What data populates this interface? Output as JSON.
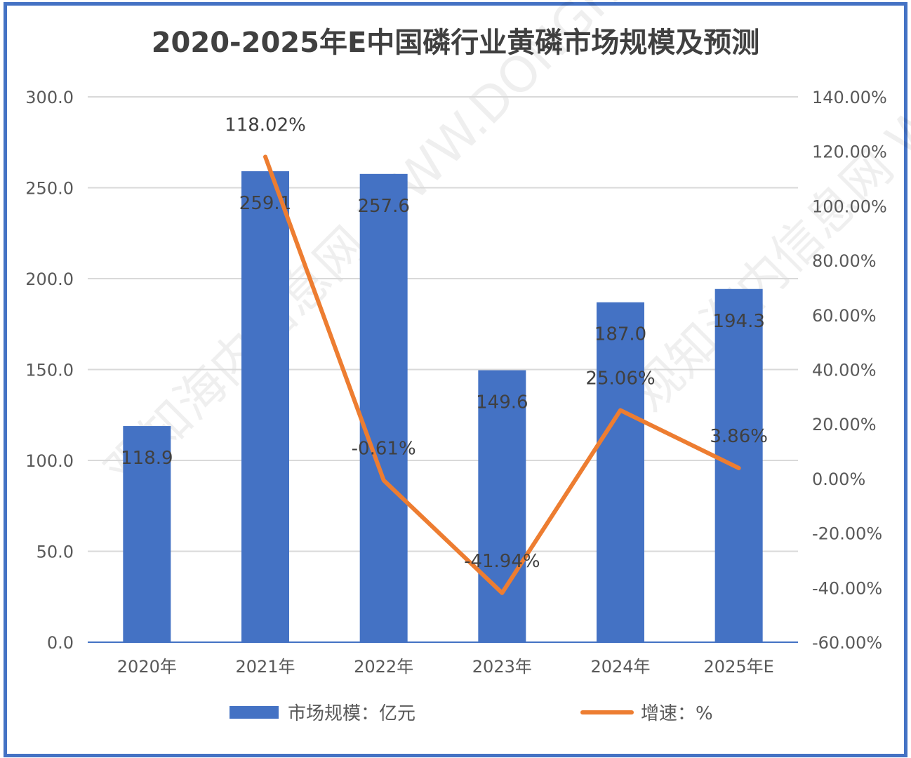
{
  "chart_data": {
    "type": "bar+line",
    "title": "2020-2025年E中国磷行业黄磷市场规模及预测",
    "categories": [
      "2020年",
      "2021年",
      "2022年",
      "2023年",
      "2024年",
      "2025年E"
    ],
    "series": [
      {
        "name": "市场规模：亿元",
        "type": "bar",
        "axis": "left",
        "values": [
          118.9,
          259.1,
          257.6,
          149.6,
          187.0,
          194.3
        ],
        "labels": [
          "118.9",
          "259.1",
          "257.6",
          "149.6",
          "187.0",
          "194.3"
        ],
        "color": "#4472C4"
      },
      {
        "name": "增速：%",
        "type": "line",
        "axis": "right",
        "values": [
          null,
          118.02,
          -0.61,
          -41.94,
          25.06,
          3.86
        ],
        "labels": [
          "",
          "118.02%",
          "-0.61%",
          "-41.94%",
          "25.06%",
          "3.86%"
        ],
        "color": "#ED7D31"
      }
    ],
    "left_axis": {
      "ylim": [
        0,
        300
      ],
      "ticks": [
        "0.0",
        "50.0",
        "100.0",
        "150.0",
        "200.0",
        "250.0",
        "300.0"
      ]
    },
    "right_axis": {
      "ylim": [
        -60,
        140
      ],
      "ticks": [
        "-60.00%",
        "-40.00%",
        "-20.00%",
        "0.00%",
        "20.00%",
        "40.00%",
        "60.00%",
        "80.00%",
        "100.00%",
        "120.00%",
        "140.00%"
      ]
    },
    "grid": true,
    "legend": "bottom"
  },
  "watermark": "观知海内信息网 WWW.DONGFANGQB.COM"
}
